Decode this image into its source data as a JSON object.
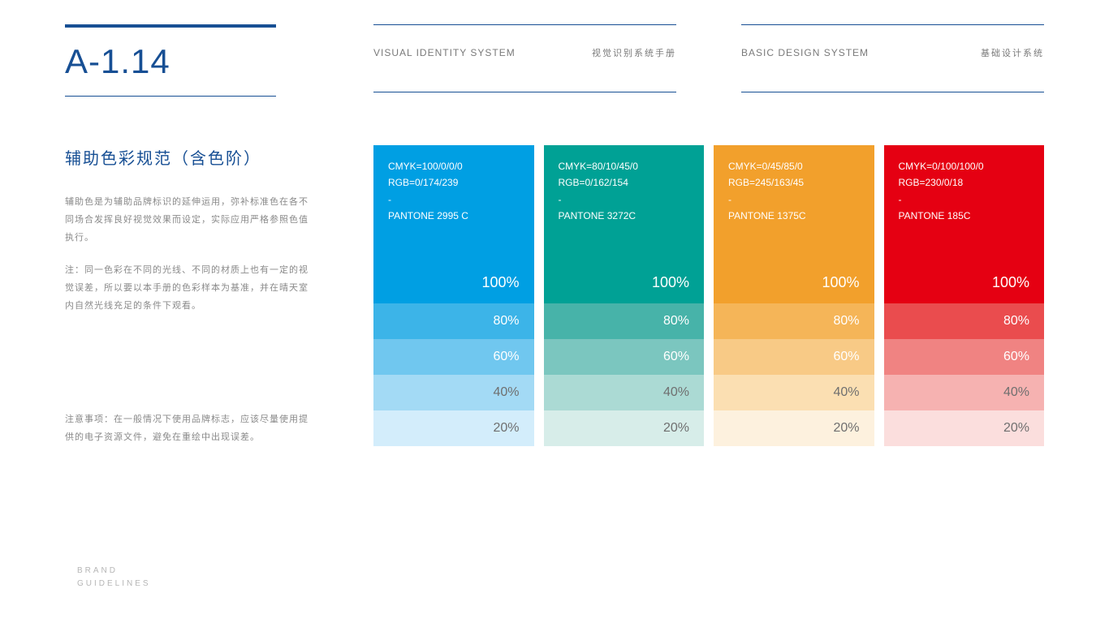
{
  "page_number": "A-1.14",
  "header": {
    "mid_en": "VISUAL IDENTITY SYSTEM",
    "mid_cn": "视觉识别系统手册",
    "right_en": "BASIC DESIGN SYSTEM",
    "right_cn": "基础设计系统"
  },
  "sidebar": {
    "title": "辅助色彩规范（含色阶）",
    "p1": "辅助色是为辅助品牌标识的延伸运用，弥补标准色在各不同场合发挥良好视觉效果而设定，实际应用严格参照色值执行。",
    "p2": "注：同一色彩在不同的光线、不同的材质上也有一定的视觉误差，所以要以本手册的色彩样本为基准，并在晴天室内自然光线充足的条件下观看。",
    "note": "注意事项：在一般情况下使用品牌标志，应该尽量使用提供的电子资源文件，避免在重绘中出现误差。"
  },
  "tint_labels": [
    "80%",
    "60%",
    "40%",
    "20%"
  ],
  "tint_label_colors": [
    "#ffffff",
    "#ffffff",
    "#6f6f6f",
    "#6f6f6f"
  ],
  "pct100_label": "100%",
  "swatches": [
    {
      "cmyk": "CMYK=100/0/0/0",
      "rgb": "RGB=0/174/239",
      "dash": "-",
      "pantone": "PANTONE 2995 C",
      "base": "#009fe3",
      "tints": [
        "#3cb4e8",
        "#70c7ef",
        "#a3daf5",
        "#d3edfb"
      ]
    },
    {
      "cmyk": "CMYK=80/10/45/0",
      "rgb": "RGB=0/162/154",
      "dash": "-",
      "pantone": "PANTONE 3272C",
      "base": "#00a195",
      "tints": [
        "#47b3a9",
        "#7bc6bf",
        "#abdad4",
        "#d7ede9"
      ]
    },
    {
      "cmyk": "CMYK=0/45/85/0",
      "rgb": "RGB=245/163/45",
      "dash": "-",
      "pantone": "PANTONE 1375C",
      "base": "#f2a02c",
      "tints": [
        "#f5b558",
        "#f8ca86",
        "#fbdfb2",
        "#fdf1de"
      ]
    },
    {
      "cmyk": "CMYK=0/100/100/0",
      "rgb": "RGB=230/0/18",
      "dash": "-",
      "pantone": "PANTONE 185C",
      "base": "#e50012",
      "tints": [
        "#ea4c4e",
        "#f08382",
        "#f6b2b1",
        "#fbdedd"
      ]
    }
  ],
  "footer": {
    "line1": "BRAND",
    "line2": "GUIDELINES"
  },
  "colors": {
    "accent": "#174f94",
    "text_muted": "#8a8a8a",
    "background": "#ffffff"
  }
}
